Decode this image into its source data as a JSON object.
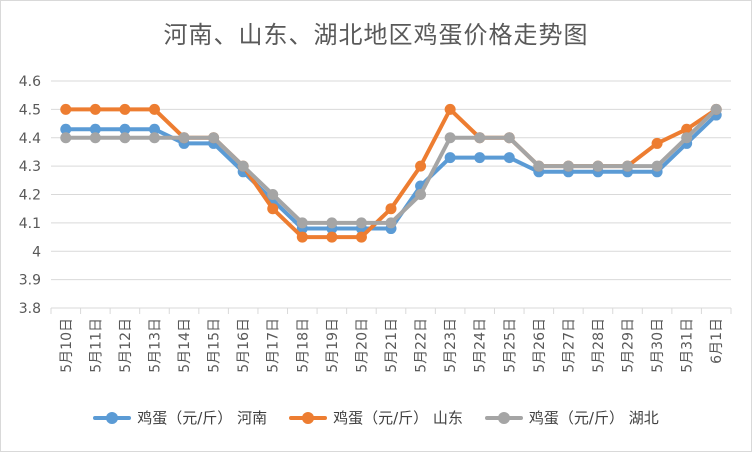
{
  "chart_data": {
    "type": "line",
    "title": "河南、山东、湖北地区鸡蛋价格走势图",
    "categories": [
      "5月10日",
      "5月11日",
      "5月12日",
      "5月13日",
      "5月14日",
      "5月15日",
      "5月16日",
      "5月17日",
      "5月18日",
      "5月19日",
      "5月20日",
      "5月21日",
      "5月22日",
      "5月23日",
      "5月24日",
      "5月25日",
      "5月26日",
      "5月27日",
      "5月28日",
      "5月29日",
      "5月30日",
      "5月31日",
      "6月1日"
    ],
    "yticks": [
      "3.8",
      "3.9",
      "4",
      "4.1",
      "4.2",
      "4.3",
      "4.4",
      "4.5",
      "4.6"
    ],
    "ylim": [
      3.8,
      4.6
    ],
    "grid": true,
    "legend_position": "bottom",
    "series": [
      {
        "name": "鸡蛋（元/斤） 河南",
        "color": "#5b9bd5",
        "values": [
          4.43,
          4.43,
          4.43,
          4.43,
          4.38,
          4.38,
          4.28,
          4.18,
          4.08,
          4.08,
          4.08,
          4.08,
          4.23,
          4.33,
          4.33,
          4.33,
          4.28,
          4.28,
          4.28,
          4.28,
          4.28,
          4.38,
          4.48
        ]
      },
      {
        "name": "鸡蛋（元/斤） 山东",
        "color": "#ed7d31",
        "values": [
          4.5,
          4.5,
          4.5,
          4.5,
          4.4,
          4.4,
          4.3,
          4.15,
          4.05,
          4.05,
          4.05,
          4.15,
          4.3,
          4.5,
          4.4,
          4.4,
          4.3,
          4.3,
          4.3,
          4.3,
          4.38,
          4.43,
          4.5
        ]
      },
      {
        "name": "鸡蛋（元/斤） 湖北",
        "color": "#a5a5a5",
        "values": [
          4.4,
          4.4,
          4.4,
          4.4,
          4.4,
          4.4,
          4.3,
          4.2,
          4.1,
          4.1,
          4.1,
          4.1,
          4.2,
          4.4,
          4.4,
          4.4,
          4.3,
          4.3,
          4.3,
          4.3,
          4.3,
          4.4,
          4.5
        ]
      }
    ]
  }
}
